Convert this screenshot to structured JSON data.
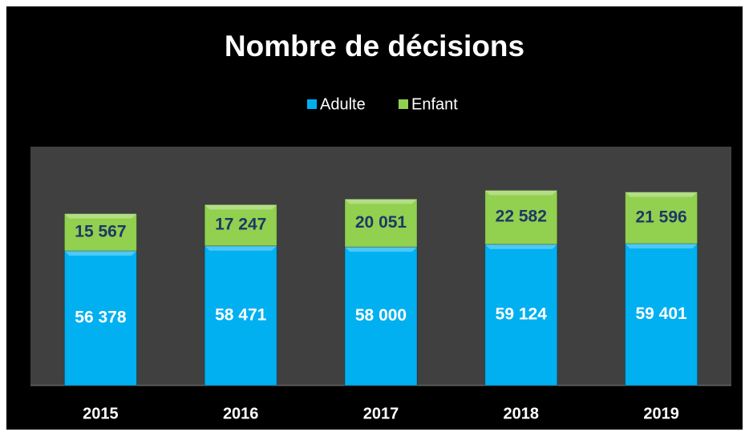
{
  "chart_data": {
    "type": "stacked_bar",
    "title": "Nombre de décisions",
    "categories": [
      "2015",
      "2016",
      "2017",
      "2018",
      "2019"
    ],
    "series": [
      {
        "name": "Adulte",
        "color": "#00b0f0",
        "values": [
          56378,
          58471,
          58000,
          59124,
          59401
        ],
        "value_labels": [
          "56 378",
          "58 471",
          "58 000",
          "59 124",
          "59 401"
        ]
      },
      {
        "name": "Enfant",
        "color": "#92d050",
        "values": [
          15567,
          17247,
          20051,
          22582,
          21596
        ],
        "value_labels": [
          "15 567",
          "17 247",
          "20 051",
          "22 582",
          "21 596"
        ]
      }
    ],
    "ylim": [
      0,
      100000
    ],
    "legend": "top"
  }
}
